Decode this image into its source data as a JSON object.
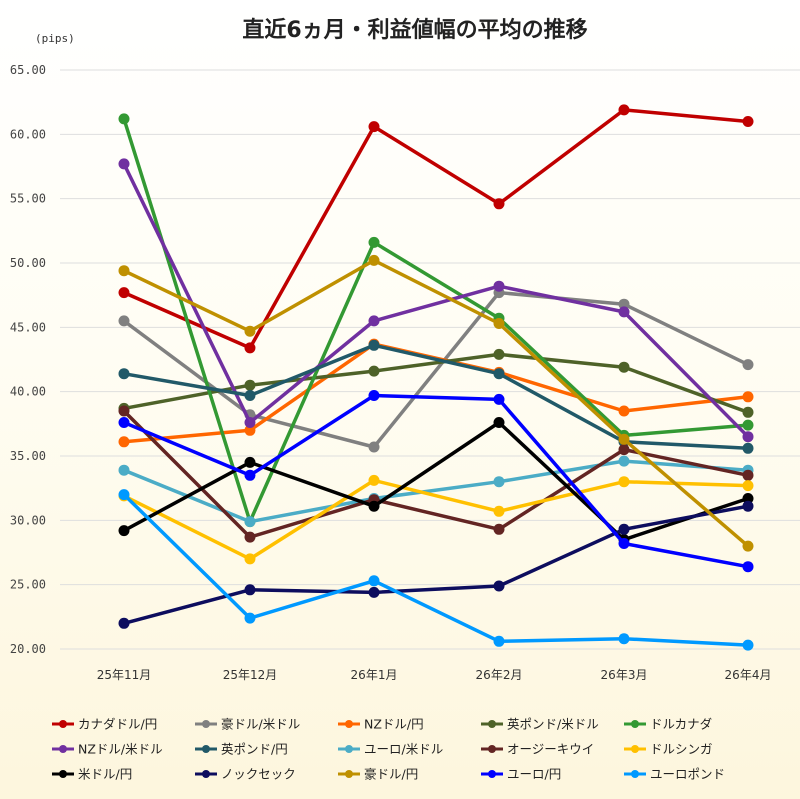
{
  "chart_data": {
    "type": "line",
    "title": "直近6ヵ月・利益値幅の平均の推移",
    "unit_label": "(pips)",
    "categories": [
      "25年11月",
      "25年12月",
      "26年1月",
      "26年2月",
      "26年3月",
      "26年4月"
    ],
    "ylim": [
      20,
      65
    ],
    "yticks": [
      "20.00",
      "25.00",
      "30.00",
      "35.00",
      "40.00",
      "45.00",
      "50.00",
      "55.00",
      "60.00",
      "65.00"
    ],
    "grid": true,
    "legend_position": "bottom",
    "series": [
      {
        "name": "カナダドル/円",
        "color": "#c00000",
        "values": [
          47.7,
          43.4,
          60.6,
          54.6,
          61.9,
          61.0
        ]
      },
      {
        "name": "豪ドル/米ドル",
        "color": "#808080",
        "values": [
          45.5,
          38.2,
          35.7,
          47.7,
          46.8,
          42.1
        ]
      },
      {
        "name": "NZドル/円",
        "color": "#ff6600",
        "values": [
          36.1,
          37.0,
          43.7,
          41.5,
          38.5,
          39.6
        ]
      },
      {
        "name": "英ポンド/米ドル",
        "color": "#4e6228",
        "values": [
          38.7,
          40.5,
          41.6,
          42.9,
          41.9,
          38.4
        ]
      },
      {
        "name": "ドルカナダ",
        "color": "#339933",
        "values": [
          61.2,
          29.9,
          51.6,
          45.7,
          36.6,
          37.4
        ]
      },
      {
        "name": "NZドル/米ドル",
        "color": "#7030a0",
        "values": [
          57.7,
          37.6,
          45.5,
          48.2,
          46.2,
          36.5
        ]
      },
      {
        "name": "英ポンド/円",
        "color": "#215968",
        "values": [
          41.4,
          39.7,
          43.6,
          41.4,
          36.1,
          35.6
        ]
      },
      {
        "name": "ユーロ/米ドル",
        "color": "#4bacc6",
        "values": [
          33.9,
          29.9,
          31.7,
          33.0,
          34.6,
          33.9
        ]
      },
      {
        "name": "オージーキウイ",
        "color": "#632523",
        "values": [
          38.5,
          28.7,
          31.6,
          29.3,
          35.5,
          33.5
        ]
      },
      {
        "name": "ドルシンガ",
        "color": "#ffc000",
        "values": [
          31.9,
          27.0,
          33.1,
          30.7,
          33.0,
          32.7
        ]
      },
      {
        "name": "米ドル/円",
        "color": "#000000",
        "values": [
          29.2,
          34.5,
          31.1,
          37.6,
          28.5,
          31.7
        ]
      },
      {
        "name": "ノックセック",
        "color": "#0d0d5e",
        "values": [
          22.0,
          24.6,
          24.4,
          24.9,
          29.3,
          31.1
        ]
      },
      {
        "name": "豪ドル/円",
        "color": "#bf9000",
        "values": [
          49.4,
          44.7,
          50.2,
          45.3,
          36.3,
          28.0
        ]
      },
      {
        "name": "ユーロ/円",
        "color": "#0000ff",
        "values": [
          37.6,
          33.5,
          39.7,
          39.4,
          28.2,
          26.4
        ]
      },
      {
        "name": "ユーロポンド",
        "color": "#0099ff",
        "values": [
          32.0,
          22.4,
          25.3,
          20.6,
          20.8,
          20.3
        ]
      }
    ]
  }
}
